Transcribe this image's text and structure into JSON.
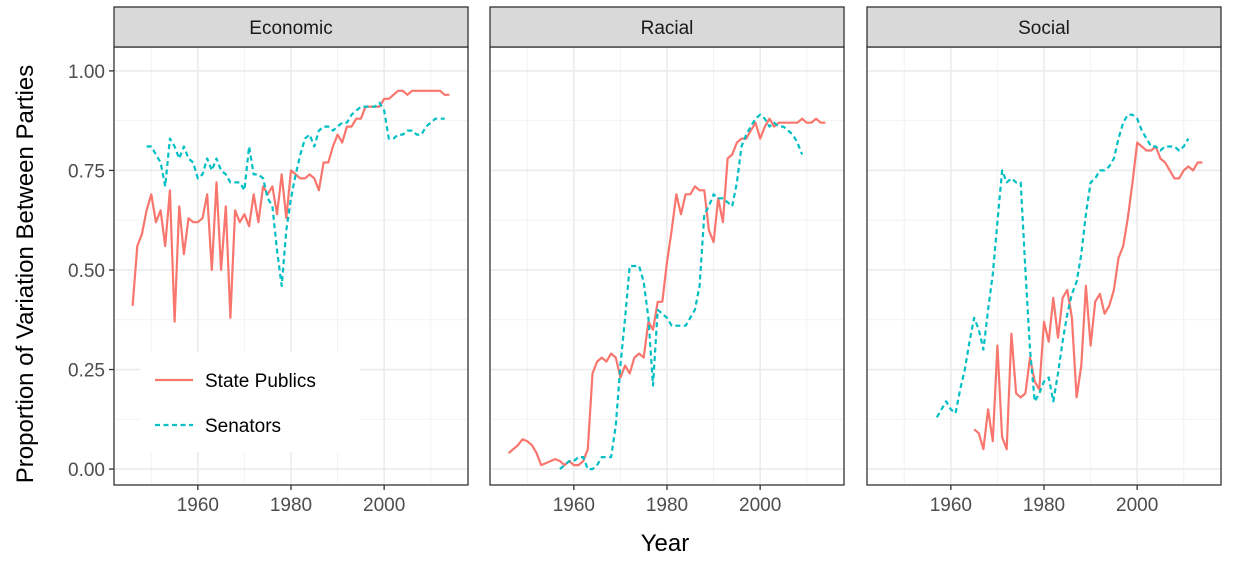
{
  "chart_data": {
    "type": "line",
    "xlabel": "Year",
    "ylabel": "Proportion of Variation Between Parties",
    "xlim": [
      1942,
      2018
    ],
    "ylim": [
      -0.04,
      1.06
    ],
    "x_ticks": [
      1960,
      1980,
      2000
    ],
    "x_tick_labels": [
      "1960",
      "1980",
      "2000"
    ],
    "y_ticks": [
      0,
      0.25,
      0.5,
      0.75,
      1.0
    ],
    "y_tick_labels": [
      "0.00",
      "0.25",
      "0.50",
      "0.75",
      "1.00"
    ],
    "grid": true,
    "legend": {
      "placement": "bottom-left of first panel",
      "entries": [
        {
          "label": "State Publics",
          "color": "#F8766D",
          "style": "solid"
        },
        {
          "label": "Senators",
          "color": "#00BFC4",
          "style": "dashed"
        }
      ]
    },
    "panels": [
      {
        "name": "Economic",
        "series": [
          {
            "name": "State Publics",
            "x": [
              1946,
              1947,
              1948,
              1949,
              1950,
              1951,
              1952,
              1953,
              1954,
              1955,
              1956,
              1957,
              1958,
              1959,
              1960,
              1961,
              1962,
              1963,
              1964,
              1965,
              1966,
              1967,
              1968,
              1969,
              1970,
              1971,
              1972,
              1973,
              1974,
              1975,
              1976,
              1977,
              1978,
              1979,
              1980,
              1981,
              1982,
              1983,
              1984,
              1985,
              1986,
              1987,
              1988,
              1989,
              1990,
              1991,
              1992,
              1993,
              1994,
              1995,
              1996,
              1997,
              1998,
              1999,
              2000,
              2001,
              2002,
              2003,
              2004,
              2005,
              2006,
              2007,
              2008,
              2009,
              2010,
              2011,
              2012,
              2013,
              2014
            ],
            "y": [
              0.41,
              0.56,
              0.59,
              0.65,
              0.69,
              0.62,
              0.65,
              0.56,
              0.7,
              0.37,
              0.66,
              0.54,
              0.63,
              0.62,
              0.62,
              0.63,
              0.69,
              0.5,
              0.72,
              0.5,
              0.66,
              0.38,
              0.65,
              0.62,
              0.64,
              0.61,
              0.69,
              0.62,
              0.71,
              0.69,
              0.71,
              0.64,
              0.74,
              0.63,
              0.75,
              0.74,
              0.73,
              0.73,
              0.74,
              0.73,
              0.7,
              0.77,
              0.77,
              0.81,
              0.84,
              0.82,
              0.86,
              0.86,
              0.88,
              0.88,
              0.91,
              0.91,
              0.91,
              0.91,
              0.93,
              0.93,
              0.94,
              0.95,
              0.95,
              0.94,
              0.95,
              0.95,
              0.95,
              0.95,
              0.95,
              0.95,
              0.95,
              0.94,
              0.94
            ]
          },
          {
            "name": "Senators",
            "x": [
              1949,
              1950,
              1951,
              1952,
              1953,
              1954,
              1955,
              1956,
              1957,
              1958,
              1959,
              1960,
              1961,
              1962,
              1963,
              1964,
              1965,
              1966,
              1967,
              1968,
              1969,
              1970,
              1971,
              1972,
              1973,
              1974,
              1975,
              1976,
              1977,
              1978,
              1979,
              1980,
              1981,
              1982,
              1983,
              1984,
              1985,
              1986,
              1987,
              1988,
              1989,
              1990,
              1991,
              1992,
              1993,
              1994,
              1995,
              1996,
              1997,
              1998,
              1999,
              2000,
              2001,
              2002,
              2003,
              2004,
              2005,
              2006,
              2007,
              2008,
              2009,
              2010,
              2011,
              2012,
              2013
            ],
            "y": [
              0.81,
              0.81,
              0.79,
              0.77,
              0.71,
              0.83,
              0.81,
              0.78,
              0.81,
              0.78,
              0.77,
              0.73,
              0.74,
              0.78,
              0.75,
              0.78,
              0.75,
              0.74,
              0.72,
              0.72,
              0.72,
              0.7,
              0.81,
              0.74,
              0.74,
              0.73,
              0.68,
              0.66,
              0.55,
              0.46,
              0.6,
              0.68,
              0.74,
              0.79,
              0.83,
              0.84,
              0.81,
              0.85,
              0.86,
              0.86,
              0.85,
              0.86,
              0.87,
              0.87,
              0.89,
              0.9,
              0.91,
              0.91,
              0.91,
              0.91,
              0.92,
              0.9,
              0.83,
              0.83,
              0.84,
              0.84,
              0.85,
              0.85,
              0.84,
              0.84,
              0.86,
              0.87,
              0.88,
              0.88,
              0.88
            ]
          }
        ]
      },
      {
        "name": "Racial",
        "series": [
          {
            "name": "State Publics",
            "x": [
              1946,
              1947,
              1948,
              1949,
              1950,
              1951,
              1952,
              1953,
              1954,
              1955,
              1956,
              1957,
              1958,
              1959,
              1960,
              1961,
              1962,
              1963,
              1964,
              1965,
              1966,
              1967,
              1968,
              1969,
              1970,
              1971,
              1972,
              1973,
              1974,
              1975,
              1976,
              1977,
              1978,
              1979,
              1980,
              1981,
              1982,
              1983,
              1984,
              1985,
              1986,
              1987,
              1988,
              1989,
              1990,
              1991,
              1992,
              1993,
              1994,
              1995,
              1996,
              1997,
              1998,
              1999,
              2000,
              2001,
              2002,
              2003,
              2004,
              2005,
              2006,
              2007,
              2008,
              2009,
              2010,
              2011,
              2012,
              2013,
              2014
            ],
            "y": [
              0.04,
              0.05,
              0.06,
              0.075,
              0.07,
              0.06,
              0.04,
              0.01,
              0.015,
              0.02,
              0.025,
              0.02,
              0.01,
              0.02,
              0.01,
              0.01,
              0.02,
              0.05,
              0.24,
              0.27,
              0.28,
              0.27,
              0.29,
              0.28,
              0.23,
              0.26,
              0.24,
              0.28,
              0.29,
              0.28,
              0.37,
              0.35,
              0.42,
              0.42,
              0.52,
              0.6,
              0.69,
              0.64,
              0.69,
              0.69,
              0.71,
              0.7,
              0.7,
              0.6,
              0.57,
              0.68,
              0.62,
              0.78,
              0.79,
              0.82,
              0.83,
              0.83,
              0.85,
              0.87,
              0.83,
              0.86,
              0.88,
              0.86,
              0.87,
              0.87,
              0.87,
              0.87,
              0.87,
              0.88,
              0.87,
              0.87,
              0.88,
              0.87,
              0.87
            ]
          },
          {
            "name": "Senators",
            "x": [
              1957,
              1958,
              1959,
              1960,
              1961,
              1962,
              1963,
              1964,
              1965,
              1966,
              1967,
              1968,
              1969,
              1970,
              1971,
              1972,
              1973,
              1974,
              1975,
              1976,
              1977,
              1978,
              1979,
              1980,
              1981,
              1982,
              1983,
              1984,
              1985,
              1986,
              1987,
              1988,
              1989,
              1990,
              1991,
              1992,
              1993,
              1994,
              1995,
              1996,
              1997,
              1998,
              1999,
              2000,
              2001,
              2002,
              2003,
              2004,
              2005,
              2006,
              2007,
              2008,
              2009
            ],
            "y": [
              0.0,
              0.01,
              0.02,
              0.02,
              0.03,
              0.03,
              0.0,
              0.0,
              0.01,
              0.03,
              0.03,
              0.03,
              0.11,
              0.26,
              0.38,
              0.51,
              0.51,
              0.51,
              0.47,
              0.38,
              0.21,
              0.4,
              0.39,
              0.38,
              0.36,
              0.36,
              0.36,
              0.36,
              0.38,
              0.4,
              0.46,
              0.64,
              0.66,
              0.69,
              0.68,
              0.68,
              0.67,
              0.66,
              0.72,
              0.81,
              0.84,
              0.86,
              0.88,
              0.89,
              0.88,
              0.86,
              0.87,
              0.86,
              0.86,
              0.85,
              0.84,
              0.82,
              0.79
            ]
          }
        ]
      },
      {
        "name": "Social",
        "series": [
          {
            "name": "State Publics",
            "x": [
              1965,
              1966,
              1967,
              1968,
              1969,
              1970,
              1971,
              1972,
              1973,
              1974,
              1975,
              1976,
              1977,
              1978,
              1979,
              1980,
              1981,
              1982,
              1983,
              1984,
              1985,
              1986,
              1987,
              1988,
              1989,
              1990,
              1991,
              1992,
              1993,
              1994,
              1995,
              1996,
              1997,
              1998,
              1999,
              2000,
              2001,
              2002,
              2003,
              2004,
              2005,
              2006,
              2007,
              2008,
              2009,
              2010,
              2011,
              2012,
              2013,
              2014
            ],
            "y": [
              0.1,
              0.09,
              0.05,
              0.15,
              0.07,
              0.31,
              0.08,
              0.05,
              0.34,
              0.19,
              0.18,
              0.19,
              0.28,
              0.22,
              0.2,
              0.37,
              0.32,
              0.43,
              0.33,
              0.43,
              0.45,
              0.38,
              0.18,
              0.26,
              0.46,
              0.31,
              0.42,
              0.44,
              0.39,
              0.41,
              0.45,
              0.53,
              0.56,
              0.63,
              0.72,
              0.82,
              0.81,
              0.8,
              0.8,
              0.81,
              0.78,
              0.77,
              0.75,
              0.73,
              0.73,
              0.75,
              0.76,
              0.75,
              0.77,
              0.77
            ]
          },
          {
            "name": "Senators",
            "x": [
              1957,
              1958,
              1959,
              1960,
              1961,
              1962,
              1963,
              1964,
              1965,
              1966,
              1967,
              1968,
              1969,
              1970,
              1971,
              1972,
              1973,
              1974,
              1975,
              1976,
              1977,
              1978,
              1979,
              1980,
              1981,
              1982,
              1983,
              1984,
              1985,
              1986,
              1987,
              1988,
              1989,
              1990,
              1991,
              1992,
              1993,
              1994,
              1995,
              1996,
              1997,
              1998,
              1999,
              2000,
              2001,
              2002,
              2003,
              2004,
              2005,
              2006,
              2007,
              2008,
              2009,
              2010,
              2011
            ],
            "y": [
              0.13,
              0.15,
              0.17,
              0.15,
              0.14,
              0.2,
              0.25,
              0.32,
              0.38,
              0.35,
              0.3,
              0.4,
              0.49,
              0.62,
              0.75,
              0.72,
              0.73,
              0.72,
              0.72,
              0.5,
              0.3,
              0.17,
              0.19,
              0.22,
              0.23,
              0.17,
              0.24,
              0.32,
              0.39,
              0.44,
              0.47,
              0.54,
              0.64,
              0.72,
              0.73,
              0.75,
              0.75,
              0.76,
              0.78,
              0.83,
              0.87,
              0.89,
              0.89,
              0.88,
              0.85,
              0.83,
              0.81,
              0.81,
              0.8,
              0.81,
              0.81,
              0.81,
              0.8,
              0.81,
              0.83
            ]
          }
        ]
      }
    ]
  }
}
